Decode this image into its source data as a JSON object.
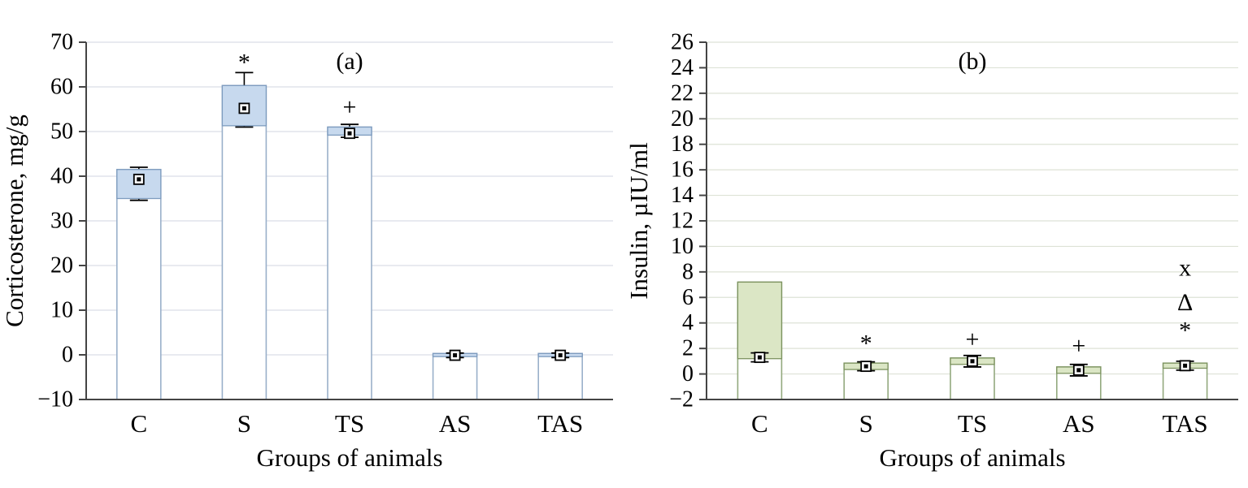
{
  "figure": {
    "background": "#ffffff"
  },
  "chart_data": [
    {
      "type": "box",
      "panel_label": "(a)",
      "ylabel": "Corticosterone, mg/g",
      "xlabel": "Groups of animals",
      "ylim": [
        -10,
        70
      ],
      "ytick_step": 10,
      "yticks": [
        70,
        60,
        50,
        40,
        30,
        20,
        10,
        0,
        -10
      ],
      "grid": true,
      "legend": "none",
      "categories": [
        "C",
        "S",
        "TS",
        "AS",
        "TAS"
      ],
      "colors": {
        "box_fill": "#c7d9ee",
        "box_outline": "#7e9cbf",
        "bar_outline": "#9ab0ca",
        "axis": "#444444",
        "grid": "#d9dee8",
        "marker": "#000000"
      },
      "boxes": [
        {
          "label": "C",
          "box_low": 35.0,
          "box_high": 41.5,
          "mean": 39.3,
          "whisker_low": 34.6,
          "whisker_high": 42.0,
          "annotations": []
        },
        {
          "label": "S",
          "box_low": 51.3,
          "box_high": 60.3,
          "mean": 55.2,
          "whisker_low": 51.0,
          "whisker_high": 63.2,
          "annotations": [
            {
              "symbol": "*",
              "y": 65.5
            }
          ]
        },
        {
          "label": "TS",
          "box_low": 49.2,
          "box_high": 51.0,
          "mean": 49.6,
          "whisker_low": 48.7,
          "whisker_high": 51.6,
          "annotations": [
            {
              "symbol": "+",
              "y": 55.5
            }
          ]
        },
        {
          "label": "AS",
          "box_low": -0.4,
          "box_high": 0.3,
          "mean": -0.1,
          "whisker_low": -0.6,
          "whisker_high": 0.4,
          "annotations": []
        },
        {
          "label": "TAS",
          "box_low": -0.4,
          "box_high": 0.3,
          "mean": -0.1,
          "whisker_low": -0.6,
          "whisker_high": 0.4,
          "annotations": []
        }
      ]
    },
    {
      "type": "box",
      "panel_label": "(b)",
      "ylabel": "Insulin, µIU/ml",
      "xlabel": "Groups of animals",
      "ylim": [
        -2,
        26
      ],
      "ytick_step": 2,
      "yticks": [
        26,
        24,
        22,
        20,
        18,
        16,
        14,
        12,
        10,
        8,
        6,
        4,
        2,
        0,
        -2
      ],
      "grid": true,
      "legend": "none",
      "categories": [
        "C",
        "S",
        "TS",
        "AS",
        "TAS"
      ],
      "colors": {
        "box_fill": "#dbe6c5",
        "box_outline": "#7d9360",
        "bar_outline": "#93a97e",
        "axis": "#444444",
        "grid": "#dde2d6",
        "marker": "#000000"
      },
      "boxes": [
        {
          "label": "C",
          "box_low": 1.2,
          "box_high": 7.2,
          "mean": 1.3,
          "whisker_low": 0.95,
          "whisker_high": 1.65,
          "annotations": []
        },
        {
          "label": "S",
          "box_low": 0.35,
          "box_high": 0.85,
          "mean": 0.6,
          "whisker_low": 0.25,
          "whisker_high": 0.95,
          "annotations": [
            {
              "symbol": "*",
              "y": 2.4
            }
          ]
        },
        {
          "label": "TS",
          "box_low": 0.75,
          "box_high": 1.25,
          "mean": 1.0,
          "whisker_low": 0.55,
          "whisker_high": 1.45,
          "annotations": [
            {
              "symbol": "+",
              "y": 2.7
            }
          ]
        },
        {
          "label": "AS",
          "box_low": 0.05,
          "box_high": 0.55,
          "mean": 0.3,
          "whisker_low": -0.15,
          "whisker_high": 0.75,
          "annotations": [
            {
              "symbol": "+",
              "y": 2.2
            }
          ]
        },
        {
          "label": "TAS",
          "box_low": 0.45,
          "box_high": 0.85,
          "mean": 0.65,
          "whisker_low": 0.3,
          "whisker_high": 1.0,
          "annotations": [
            {
              "symbol": "x",
              "y": 8.3
            },
            {
              "symbol": "Δ",
              "y": 5.6
            },
            {
              "symbol": "*",
              "y": 3.4
            }
          ]
        }
      ]
    }
  ]
}
